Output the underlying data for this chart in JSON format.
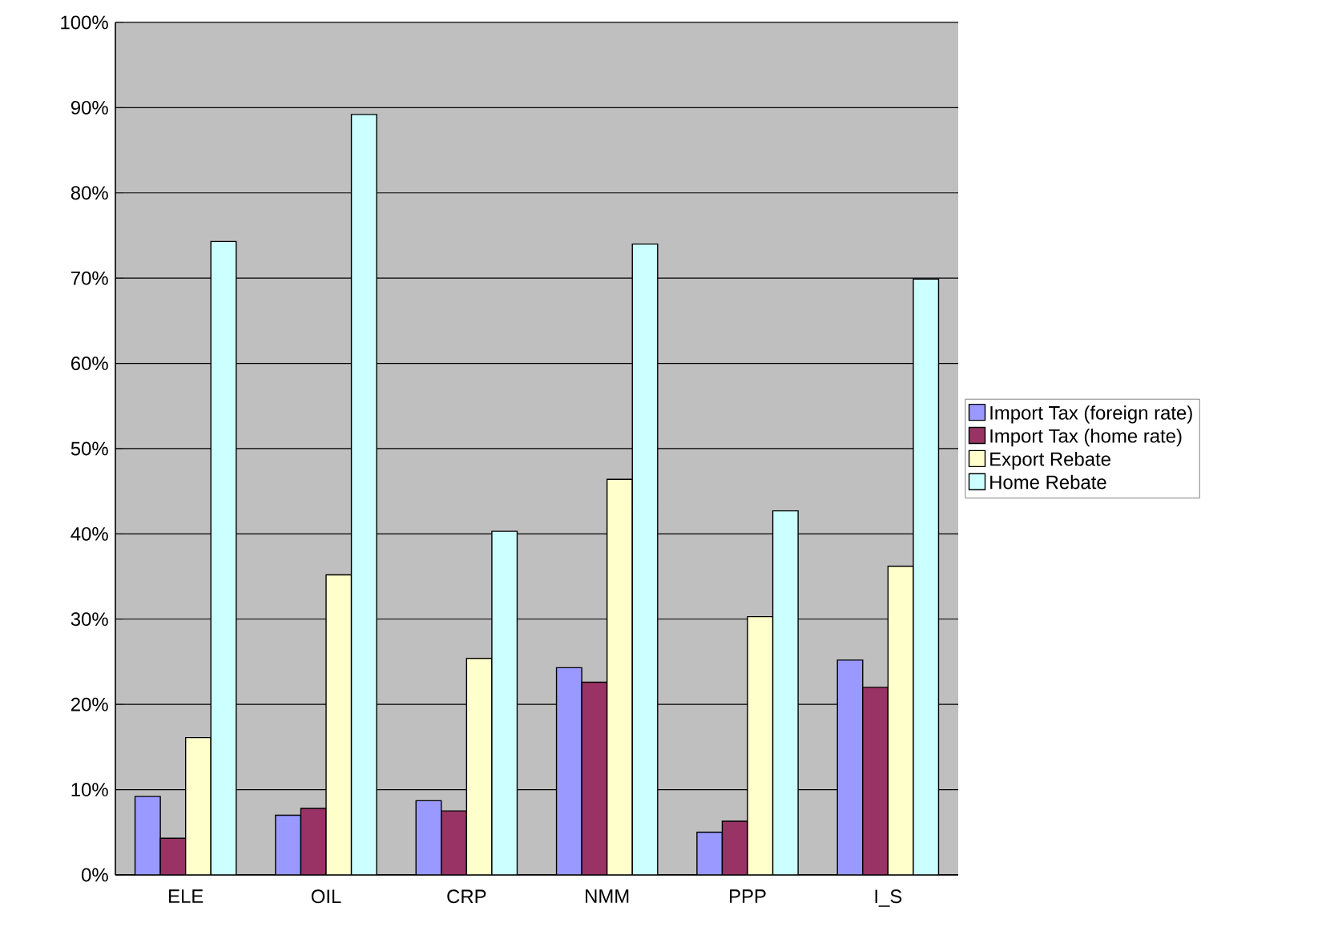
{
  "chart_data": {
    "type": "bar",
    "categories": [
      "ELE",
      "OIL",
      "CRP",
      "NMM",
      "PPP",
      "I_S"
    ],
    "series": [
      {
        "name": "Import Tax (foreign rate)",
        "color": "#9999ff",
        "values": [
          9.2,
          7.0,
          8.7,
          24.3,
          5.0,
          25.2
        ]
      },
      {
        "name": "Import Tax (home rate)",
        "color": "#993366",
        "values": [
          4.3,
          7.8,
          7.5,
          22.6,
          6.3,
          22.0
        ]
      },
      {
        "name": "Export Rebate",
        "color": "#ffffcc",
        "values": [
          16.1,
          35.2,
          25.4,
          46.4,
          30.3,
          36.2
        ]
      },
      {
        "name": "Home Rebate",
        "color": "#ccffff",
        "values": [
          74.3,
          89.2,
          40.3,
          74.0,
          42.7,
          69.9
        ]
      }
    ],
    "ylim": [
      0,
      100
    ],
    "yticks": [
      {
        "value": 0,
        "label": "0%"
      },
      {
        "value": 10,
        "label": "10%"
      },
      {
        "value": 20,
        "label": "20%"
      },
      {
        "value": 30,
        "label": "30%"
      },
      {
        "value": 40,
        "label": "40%"
      },
      {
        "value": 50,
        "label": "50%"
      },
      {
        "value": 60,
        "label": "60%"
      },
      {
        "value": 70,
        "label": "70%"
      },
      {
        "value": 80,
        "label": "80%"
      },
      {
        "value": 90,
        "label": "90%"
      },
      {
        "value": 100,
        "label": "100%"
      }
    ],
    "grid": "y",
    "legend": "right"
  }
}
